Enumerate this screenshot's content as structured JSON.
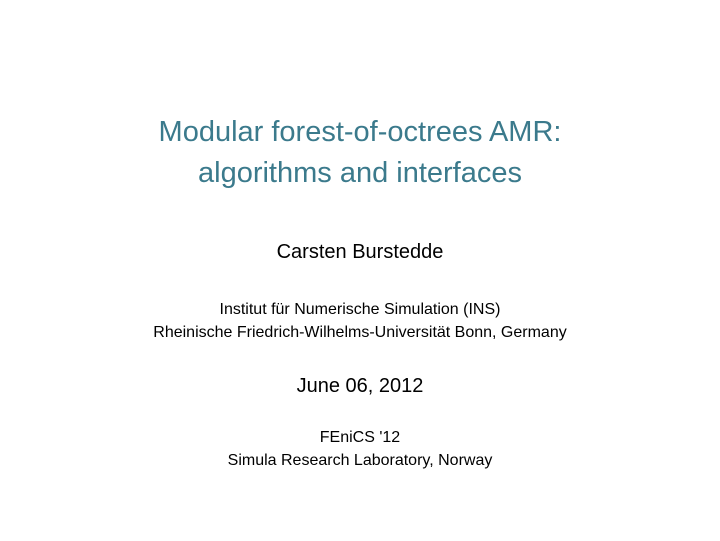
{
  "title": {
    "line1": "Modular forest-of-octrees AMR:",
    "line2": "algorithms and interfaces"
  },
  "author": "Carsten Burstedde",
  "affiliation": {
    "line1": "Institut für Numerische Simulation (INS)",
    "line2": "Rheinische Friedrich-Wilhelms-Universität Bonn, Germany"
  },
  "date": "June 06, 2012",
  "venue": {
    "line1": "FEniCS '12",
    "line2": "Simula Research Laboratory, Norway"
  },
  "colors": {
    "title_color": "#3b7a8c",
    "text_color": "#000000",
    "background": "#ffffff"
  },
  "typography": {
    "title_fontsize": 29,
    "body_fontsize": 20,
    "small_fontsize": 16,
    "font_family": "sans-serif"
  }
}
